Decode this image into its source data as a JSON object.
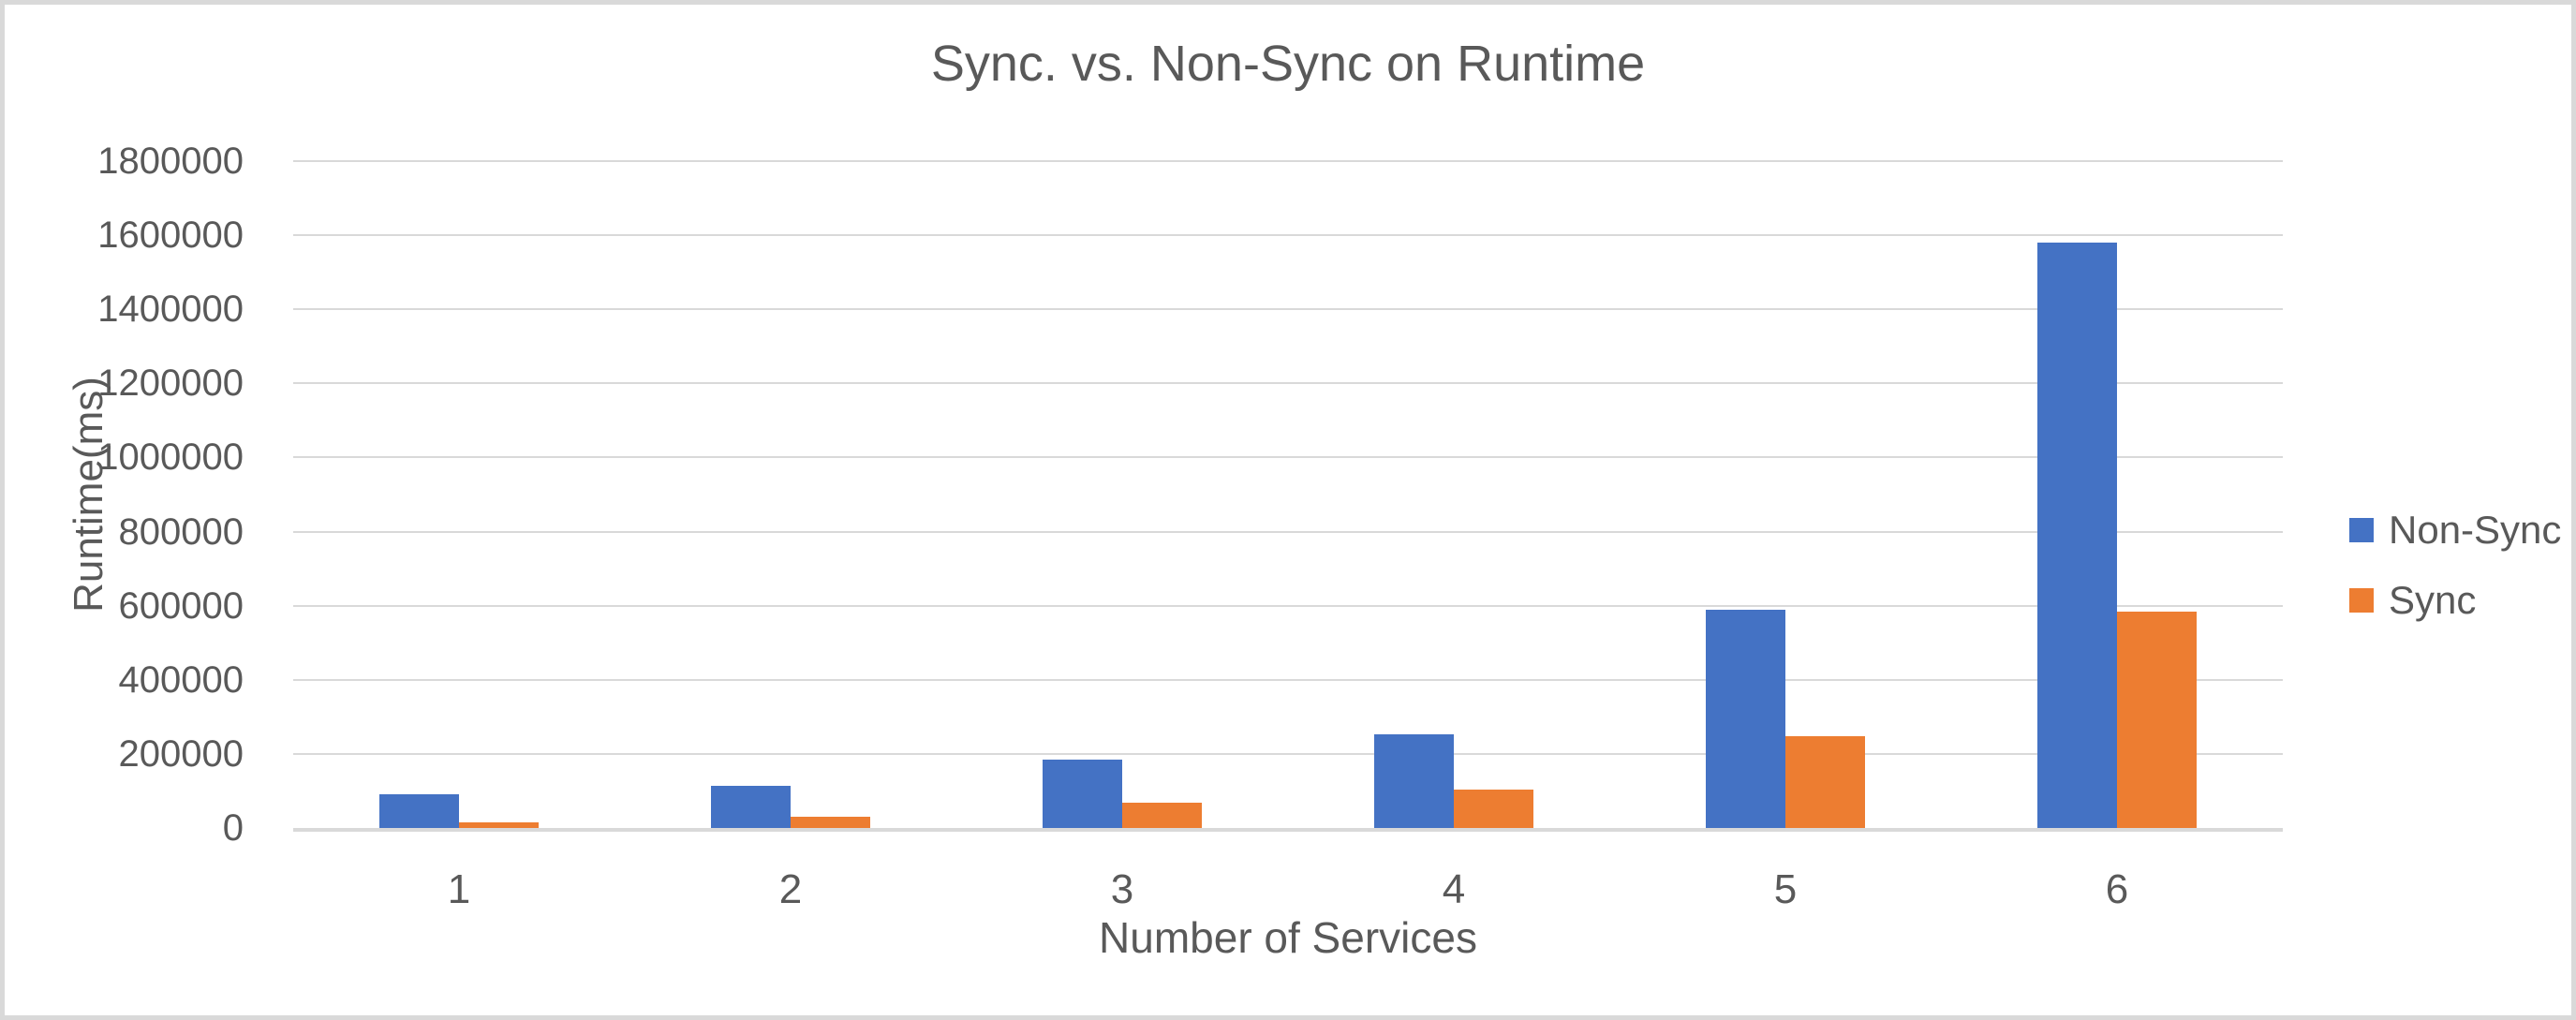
{
  "chart_data": {
    "type": "bar",
    "title": "Sync. vs. Non-Sync on Runtime",
    "xlabel": "Number of Services",
    "ylabel": "Runtime(ms)",
    "categories": [
      "1",
      "2",
      "3",
      "4",
      "5",
      "6"
    ],
    "series": [
      {
        "name": "Non-Sync",
        "color": "#4472C4",
        "values": [
          90000,
          115000,
          185000,
          253000,
          588000,
          1580000
        ]
      },
      {
        "name": "Sync",
        "color": "#ED7D31",
        "values": [
          15000,
          30000,
          68000,
          103000,
          247000,
          583000
        ]
      }
    ],
    "ylim": [
      0,
      1800000
    ],
    "ytick_step": 200000,
    "ytick_labels": [
      "0",
      "200000",
      "400000",
      "600000",
      "800000",
      "1000000",
      "1200000",
      "1400000",
      "1600000",
      "1800000"
    ],
    "grid": true,
    "legend_position": "right",
    "gridline_color": "#d9d9d9",
    "text_color": "#595959"
  }
}
